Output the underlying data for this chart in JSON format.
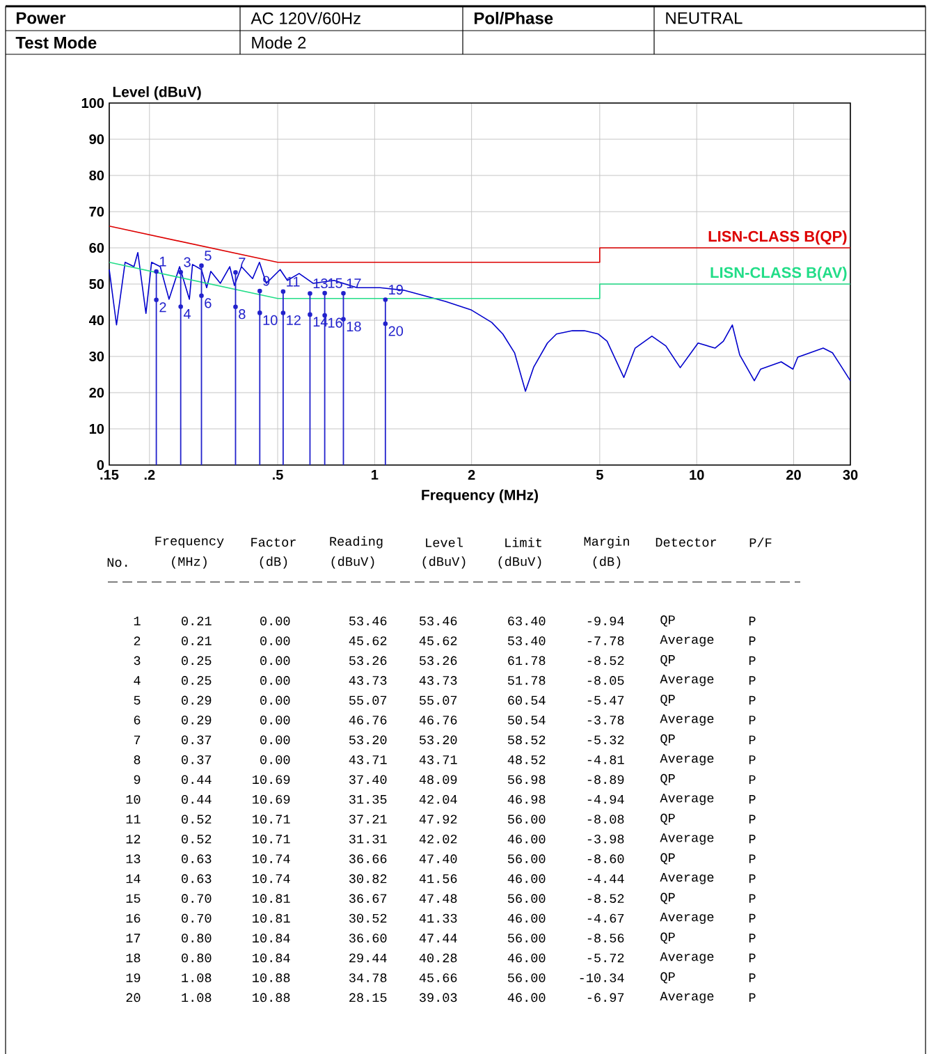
{
  "chart_data": {
    "type": "line",
    "xlabel": "Frequency (MHz)",
    "ylabel": "Level (dBuV)",
    "log": "x",
    "grid": true,
    "xlim": [
      0.15,
      30
    ],
    "ylim": [
      0,
      100
    ],
    "xticks": [
      {
        "value": 0.15,
        "label": ".15"
      },
      {
        "value": 0.2,
        "label": ".2"
      },
      {
        "value": 0.5,
        "label": ".5"
      },
      1,
      2,
      5,
      10,
      20,
      30
    ],
    "yticks": [
      0,
      10,
      20,
      30,
      40,
      50,
      60,
      70,
      80,
      90,
      100
    ],
    "series": [
      {
        "color": "#0000cc",
        "x": [
          0.15,
          0.158,
          0.168,
          0.179,
          0.184,
          0.195,
          0.203,
          0.216,
          0.23,
          0.248,
          0.266,
          0.272,
          0.29,
          0.301,
          0.31,
          0.332,
          0.355,
          0.367,
          0.386,
          0.418,
          0.439,
          0.461,
          0.509,
          0.536,
          0.583,
          0.644,
          0.748,
          0.881,
          1.04,
          1.23,
          1.66,
          1.99,
          2.31,
          2.5,
          2.72,
          2.94,
          3.12,
          3.44,
          3.67,
          4.11,
          4.48,
          4.95,
          5.27,
          5.94,
          6.44,
          7.26,
          8.02,
          8.89,
          10.1,
          11.4,
          12.1,
          12.9,
          13.6,
          15.1,
          15.8,
          18.3,
          19.9,
          20.6,
          24.7,
          26.4,
          27.8,
          30
        ],
        "values": [
          54.0,
          38.7,
          56.0,
          54.8,
          58.7,
          41.9,
          56.0,
          54.8,
          45.8,
          54.8,
          45.8,
          55.4,
          54.0,
          49.0,
          53.5,
          50.2,
          54.8,
          49.6,
          54.8,
          51.5,
          56.0,
          50.2,
          54.0,
          51.0,
          52.9,
          50.2,
          51.0,
          49.0,
          49.0,
          48.3,
          45.2,
          42.9,
          39.4,
          36.2,
          31.0,
          20.4,
          27.1,
          33.7,
          36.2,
          37.1,
          37.1,
          36.2,
          34.2,
          24.2,
          32.3,
          35.6,
          32.9,
          26.9,
          33.7,
          32.3,
          34.2,
          38.7,
          30.4,
          23.3,
          26.5,
          28.5,
          26.5,
          29.8,
          32.3,
          31.0,
          27.9,
          23.3
        ]
      },
      {
        "name": "LISN-CLASS B(QP)",
        "color": "#dd0000",
        "x": [
          0.15,
          0.5,
          5,
          5,
          30
        ],
        "values": [
          66,
          56,
          56,
          60,
          60
        ]
      },
      {
        "name": "LISN-CLASS B(AV)",
        "color": "#22dd88",
        "x": [
          0.15,
          0.5,
          5,
          5,
          30
        ],
        "values": [
          56,
          46,
          46,
          50,
          50
        ]
      },
      {
        "type": "lollipop",
        "color": "#2222cc",
        "x": [
          0.21,
          0.21,
          0.25,
          0.25,
          0.29,
          0.29,
          0.37,
          0.37,
          0.44,
          0.44,
          0.52,
          0.52,
          0.63,
          0.63,
          0.7,
          0.7,
          0.8,
          0.8,
          1.08,
          1.08
        ],
        "values": [
          53.46,
          45.62,
          53.26,
          43.73,
          55.07,
          46.76,
          53.2,
          43.71,
          48.09,
          42.04,
          47.92,
          42.02,
          47.4,
          41.56,
          47.48,
          41.33,
          47.44,
          40.28,
          45.66,
          39.03
        ]
      }
    ],
    "annotations": [
      "Power",
      "AC 120V/60Hz",
      "Pol/Phase",
      "NEUTRAL",
      "Test Mode",
      "Mode 2",
      "Frequency",
      "Factor",
      "Reading",
      "Level",
      "Limit",
      "Margin",
      "Detector",
      "P/F",
      "No.",
      "(MHz)",
      "(dB)",
      "(dBuV)",
      "(dBuV)",
      "(dBuV)",
      "(dB)",
      "1",
      "0.21",
      "0.00",
      "53.46",
      "53.46",
      "63.40",
      "-9.94",
      "QP",
      "P",
      "2",
      "0.21",
      "0.00",
      "45.62",
      "45.62",
      "53.40",
      "-7.78",
      "Average",
      "P",
      "3",
      "0.25",
      "0.00",
      "53.26",
      "53.26",
      "61.78",
      "-8.52",
      "QP",
      "P",
      "4",
      "0.25",
      "0.00",
      "43.73",
      "43.73",
      "51.78",
      "-8.05",
      "Average",
      "P",
      "5",
      "0.29",
      "0.00",
      "55.07",
      "55.07",
      "60.54",
      "-5.47",
      "QP",
      "P",
      "6",
      "0.29",
      "0.00",
      "46.76",
      "46.76",
      "50.54",
      "-3.78",
      "Average",
      "P",
      "7",
      "0.37",
      "0.00",
      "53.20",
      "53.20",
      "58.52",
      "-5.32",
      "QP",
      "P",
      "8",
      "0.37",
      "0.00",
      "43.71",
      "43.71",
      "48.52",
      "-4.81",
      "Average",
      "P",
      "9",
      "0.44",
      "10.69",
      "37.40",
      "48.09",
      "56.98",
      "-8.89",
      "QP",
      "P",
      "10",
      "0.44",
      "10.69",
      "31.35",
      "42.04",
      "46.98",
      "-4.94",
      "Average",
      "P",
      "11",
      "0.52",
      "10.71",
      "37.21",
      "47.92",
      "56.00",
      "-8.08",
      "QP",
      "P",
      "12",
      "0.52",
      "10.71",
      "31.31",
      "42.02",
      "46.00",
      "-3.98",
      "Average",
      "P",
      "13",
      "0.63",
      "10.74",
      "36.66",
      "47.40",
      "56.00",
      "-8.60",
      "QP",
      "P",
      "14",
      "0.63",
      "10.74",
      "30.82",
      "41.56",
      "46.00",
      "-4.44",
      "Average",
      "P",
      "15",
      "0.70",
      "10.81",
      "36.67",
      "47.48",
      "56.00",
      "-8.52",
      "QP",
      "P",
      "16",
      "0.70",
      "10.81",
      "30.52",
      "41.33",
      "46.00",
      "-4.67",
      "Average",
      "P",
      "17",
      "0.80",
      "10.84",
      "36.60",
      "47.44",
      "56.00",
      "-8.56",
      "QP",
      "P",
      "18",
      "0.80",
      "10.84",
      "29.44",
      "40.28",
      "46.00",
      "-5.72",
      "Average",
      "P",
      "19",
      "1.08",
      "10.88",
      "34.78",
      "45.66",
      "56.00",
      "-10.34",
      "QP",
      "P",
      "20",
      "1.08",
      "10.88",
      "28.15",
      "39.03",
      "46.00",
      "-6.97",
      "Average",
      "P",
      {
        "text": "1",
        "x": 0.21,
        "y": 53.46
      },
      {
        "text": "2",
        "x": 0.21,
        "y": 45.62
      },
      {
        "text": "3",
        "x": 0.25,
        "y": 53.26
      },
      {
        "text": "4",
        "x": 0.25,
        "y": 43.73
      },
      {
        "text": "5",
        "x": 0.29,
        "y": 55.07
      },
      {
        "text": "6",
        "x": 0.29,
        "y": 46.76
      },
      {
        "text": "7",
        "x": 0.37,
        "y": 53.2
      },
      {
        "text": "8",
        "x": 0.37,
        "y": 43.71
      },
      {
        "text": "9",
        "x": 0.44,
        "y": 48.09
      },
      {
        "text": "10",
        "x": 0.44,
        "y": 42.04
      },
      {
        "text": "11",
        "x": 0.52,
        "y": 47.92
      },
      {
        "text": "12",
        "x": 0.52,
        "y": 42.02
      },
      {
        "text": "13",
        "x": 0.63,
        "y": 47.4
      },
      {
        "text": "14",
        "x": 0.63,
        "y": 41.56
      },
      {
        "text": "15",
        "x": 0.7,
        "y": 47.48
      },
      {
        "text": "16",
        "x": 0.7,
        "y": 41.33
      },
      {
        "text": "17",
        "x": 0.8,
        "y": 47.44
      },
      {
        "text": "18",
        "x": 0.8,
        "y": 40.28
      },
      {
        "text": "19",
        "x": 1.08,
        "y": 45.66
      },
      {
        "text": "20",
        "x": 1.08,
        "y": 39.03
      }
    ]
  }
}
